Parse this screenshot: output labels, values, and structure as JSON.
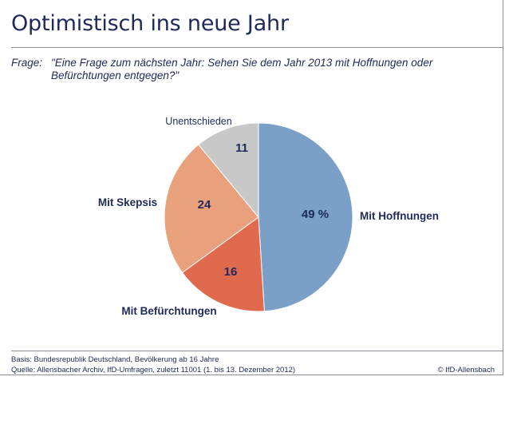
{
  "title": "Optimistisch ins neue Jahr",
  "question": {
    "label": "Frage:",
    "text": "\"Eine Frage zum nächsten Jahr: Sehen Sie dem Jahr 2013 mit Hoffnungen oder Befürchtungen entgegen?\""
  },
  "chart_data": {
    "type": "pie",
    "slices": [
      {
        "name": "Mit Hoffnungen",
        "value": 49,
        "value_label": "49 %",
        "color": "#7aa0c8"
      },
      {
        "name": "Mit Befürchtungen",
        "value": 16,
        "value_label": "16",
        "color": "#e06a4e"
      },
      {
        "name": "Mit Skepsis",
        "value": 24,
        "value_label": "24",
        "color": "#e9a07c"
      },
      {
        "name": "Unentschieden",
        "value": 11,
        "value_label": "11",
        "color": "#c8c8c8"
      }
    ],
    "start": "12 o'clock",
    "direction": "clockwise"
  },
  "footer": {
    "basis": "Basis: Bundesrepublik Deutschland, Bevölkerung ab 16 Jahre",
    "source": "Quelle: Allensbacher Archiv, IfD-Umfragen, zuletzt 11001 (1. bis 13. Dezember 2012)",
    "copyright": "© IfD-Allensbach"
  },
  "colors": {
    "text": "#1f2a5a",
    "rule": "#8a8f9a"
  }
}
